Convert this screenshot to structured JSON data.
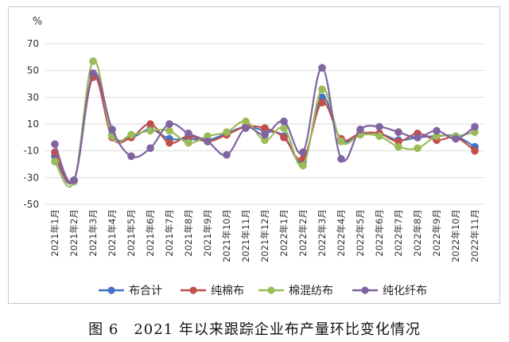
{
  "caption": "图 6　2021 年以来跟踪企业布产量环比变化情况",
  "chart_data": {
    "type": "line",
    "title": "",
    "xlabel": "",
    "ylabel": "%",
    "ylim": [
      -50,
      70
    ],
    "yticks": [
      -50,
      -30,
      -10,
      10,
      30,
      50,
      70
    ],
    "grid": true,
    "legend_position": "bottom",
    "categories": [
      "2021年1月",
      "2021年2月",
      "2021年3月",
      "2021年4月",
      "2021年5月",
      "2021年6月",
      "2021年7月",
      "2021年8月",
      "2021年9月",
      "2021年10月",
      "2021年11月",
      "2021年12月",
      "2022年1月",
      "2022年2月",
      "2022年3月",
      "2022年4月",
      "2022年5月",
      "2022年6月",
      "2022年7月",
      "2022年8月",
      "2022年9月",
      "2022年10月",
      "2022年11月"
    ],
    "series": [
      {
        "name": "布合计",
        "color": "#4472c4",
        "values": [
          -14,
          -32,
          46,
          2,
          0,
          6,
          -1,
          -1,
          -2,
          3,
          8,
          5,
          1,
          -18,
          30,
          -2,
          3,
          3,
          -2,
          0,
          1,
          1,
          -7
        ]
      },
      {
        "name": "纯棉布",
        "color": "#c0504d",
        "values": [
          -11,
          -32,
          45,
          0,
          0,
          10,
          -4,
          1,
          -3,
          2,
          8,
          7,
          0,
          -16,
          26,
          -1,
          3,
          3,
          -3,
          3,
          -2,
          0,
          -10
        ]
      },
      {
        "name": "棉混纺布",
        "color": "#9bbb59",
        "values": [
          -18,
          -33,
          57,
          1,
          2,
          5,
          5,
          -4,
          1,
          4,
          12,
          -2,
          7,
          -21,
          36,
          -3,
          2,
          1,
          -7,
          -8,
          1,
          1,
          4
        ]
      },
      {
        "name": "纯化纤布",
        "color": "#8064a2",
        "values": [
          -5,
          -32,
          48,
          6,
          -14,
          -8,
          10,
          3,
          -3,
          -13,
          7,
          2,
          12,
          -11,
          52,
          -16,
          6,
          8,
          4,
          0,
          5,
          -1,
          8
        ]
      }
    ]
  }
}
